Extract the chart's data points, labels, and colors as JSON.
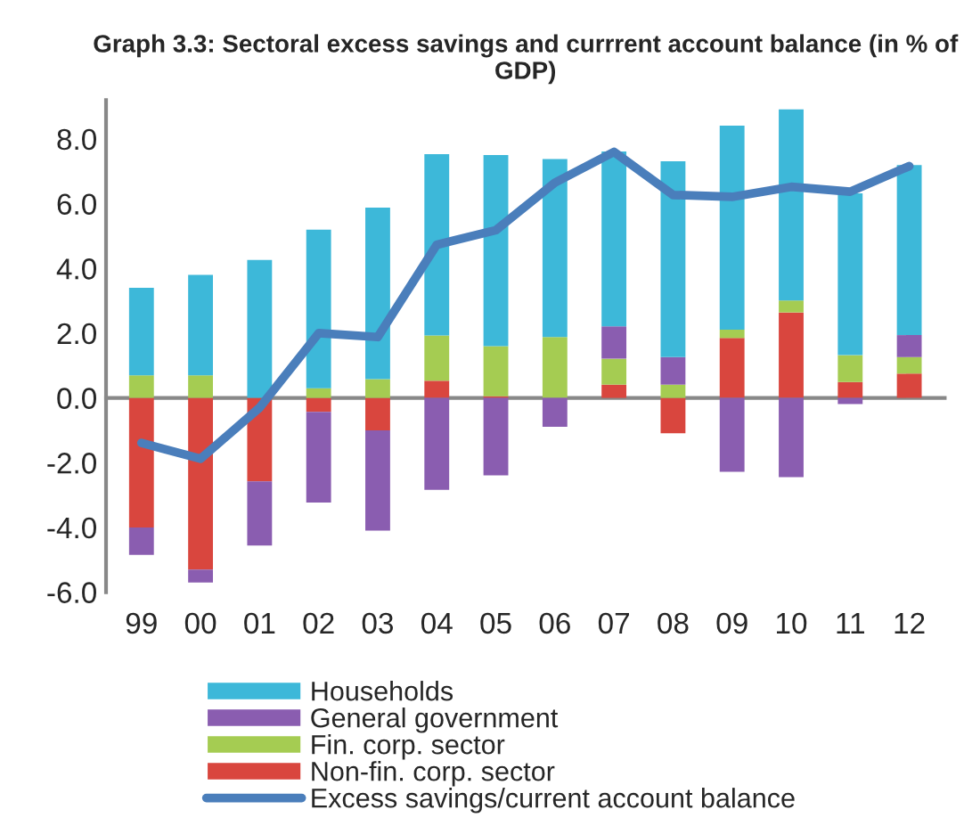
{
  "chart_data": {
    "type": "bar",
    "stacked": true,
    "title": "Graph 3.3: Sectoral excess savings and currrent account balance (in % of GDP)",
    "categories": [
      "99",
      "00",
      "01",
      "02",
      "03",
      "04",
      "05",
      "06",
      "07",
      "08",
      "09",
      "10",
      "11",
      "12"
    ],
    "series": [
      {
        "name": "Non-fin. corp. sector",
        "color": "#d9463e",
        "values": [
          -4.0,
          -5.3,
          -2.58,
          -0.43,
          -1.0,
          0.53,
          0.05,
          0,
          0.41,
          -1.09,
          1.85,
          2.64,
          0.49,
          0.75
        ]
      },
      {
        "name": "Fin. corp. sector",
        "color": "#a5cc52",
        "values": [
          0.7,
          0.7,
          0,
          0.3,
          0.58,
          1.4,
          1.55,
          1.88,
          0.8,
          0.41,
          0.26,
          0.37,
          0.83,
          0.51
        ]
      },
      {
        "name": "General government",
        "color": "#8a5db0",
        "values": [
          -0.85,
          -0.4,
          -1.98,
          -2.8,
          -3.1,
          -2.84,
          -2.39,
          -0.89,
          1.0,
          0.85,
          -2.28,
          -2.45,
          -0.19,
          0.68
        ]
      },
      {
        "name": "Households",
        "color": "#3db8d9",
        "values": [
          2.7,
          3.1,
          4.26,
          4.9,
          5.3,
          5.6,
          5.9,
          5.5,
          5.4,
          6.05,
          6.3,
          5.9,
          5.0,
          5.25
        ]
      },
      {
        "name": "Excess savings/current account balance",
        "type": "line",
        "color": "#4a7ebb",
        "values": [
          -1.39,
          -1.88,
          -0.3,
          2.0,
          1.88,
          4.73,
          5.18,
          6.65,
          7.6,
          6.27,
          6.21,
          6.52,
          6.37,
          7.16
        ]
      }
    ],
    "ylim": [
      -6,
      9.2
    ],
    "yticks": [
      {
        "value": -6,
        "label": "-6.0"
      },
      {
        "value": -4,
        "label": "-4.0"
      },
      {
        "value": -2,
        "label": "-2.0"
      },
      {
        "value": 0,
        "label": "0.0"
      },
      {
        "value": 2,
        "label": "2.0"
      },
      {
        "value": 4,
        "label": "4.0"
      },
      {
        "value": 6,
        "label": "6.0"
      },
      {
        "value": 8,
        "label": "8.0"
      }
    ],
    "legend": "bottom"
  }
}
